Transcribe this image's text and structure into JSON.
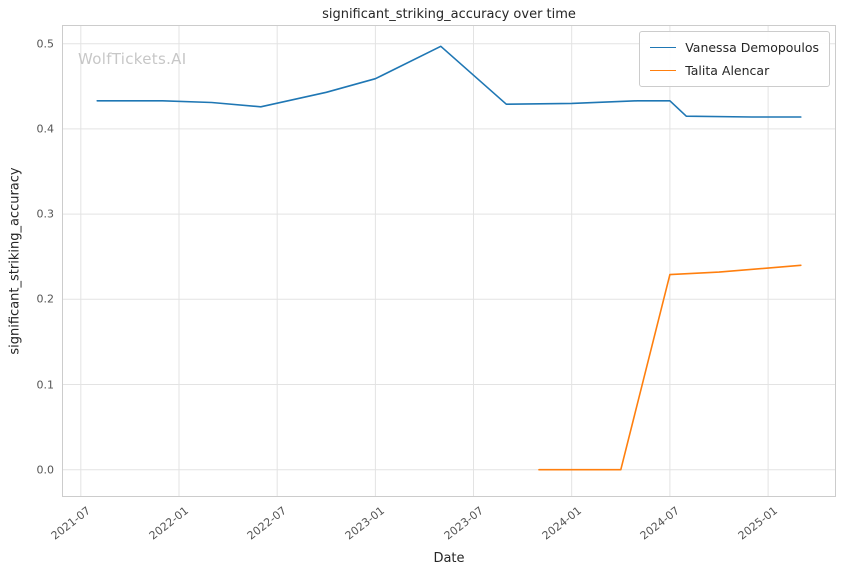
{
  "chart_data": {
    "type": "line",
    "title": "significant_striking_accuracy over time",
    "xlabel": "Date",
    "ylabel": "significant_striking_accuracy",
    "watermark": "WolfTickets.AI",
    "legend_position": "upper right",
    "grid": true,
    "colors": {
      "background": "#ffffff",
      "grid": "#e3e3e3",
      "axes_border": "#cccccc",
      "text": "#262626",
      "tick_text": "#555555",
      "watermark": "#c7c7c7"
    },
    "ylim": [
      -0.032,
      0.522
    ],
    "yticks": [
      0.0,
      0.1,
      0.2,
      0.3,
      0.4,
      0.5
    ],
    "ytick_labels": [
      "0.0",
      "0.1",
      "0.2",
      "0.3",
      "0.4",
      "0.5"
    ],
    "xticks": [
      "2021-07",
      "2022-01",
      "2022-07",
      "2023-01",
      "2023-07",
      "2024-01",
      "2024-07",
      "2025-01"
    ],
    "series": [
      {
        "name": "Vanessa Demopoulos",
        "color": "#1f77b4",
        "points": [
          {
            "x": "2021-08",
            "y": 0.433
          },
          {
            "x": "2021-12",
            "y": 0.433
          },
          {
            "x": "2022-03",
            "y": 0.431
          },
          {
            "x": "2022-06",
            "y": 0.426
          },
          {
            "x": "2022-10",
            "y": 0.443
          },
          {
            "x": "2023-01",
            "y": 0.459
          },
          {
            "x": "2023-05",
            "y": 0.497
          },
          {
            "x": "2023-09",
            "y": 0.429
          },
          {
            "x": "2024-01",
            "y": 0.43
          },
          {
            "x": "2024-05",
            "y": 0.433
          },
          {
            "x": "2024-07",
            "y": 0.433
          },
          {
            "x": "2024-08",
            "y": 0.415
          },
          {
            "x": "2024-12",
            "y": 0.414
          },
          {
            "x": "2025-03",
            "y": 0.414
          }
        ]
      },
      {
        "name": "Talita Alencar",
        "color": "#ff7f0e",
        "points": [
          {
            "x": "2023-11",
            "y": 0.0
          },
          {
            "x": "2024-01",
            "y": 0.0
          },
          {
            "x": "2024-04",
            "y": 0.0
          },
          {
            "x": "2024-07",
            "y": 0.229
          },
          {
            "x": "2024-10",
            "y": 0.232
          },
          {
            "x": "2025-03",
            "y": 0.24
          }
        ]
      }
    ]
  }
}
